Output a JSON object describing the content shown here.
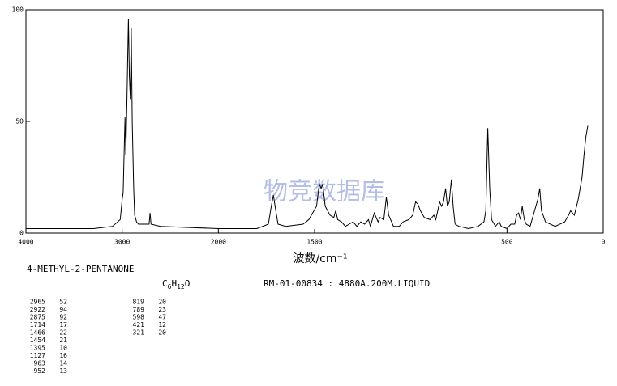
{
  "chart_data": {
    "type": "line",
    "compound": "4-METHYL-2-PENTANONE",
    "formula": "C6H12O",
    "reference": "RM-01-00834 : 4880A.200M.LIQUID",
    "watermark": "物竞数据库",
    "x_label": "波数/cm⁻¹",
    "xlim": [
      4000,
      0
    ],
    "x_scale_break": 2000,
    "x_scale_ratio": 2,
    "xticks": [
      4000,
      3000,
      2000,
      1500,
      500,
      0
    ],
    "ylim": [
      0,
      100
    ],
    "yticks": [
      0,
      50,
      100
    ],
    "color": "#000000",
    "x": [
      4000,
      3300,
      3100,
      3020,
      3000,
      2990,
      2970,
      2962,
      2950,
      2935,
      2925,
      2915,
      2905,
      2895,
      2880,
      2870,
      2850,
      2830,
      2720,
      2710,
      2700,
      2600,
      2000,
      1800,
      1740,
      1725,
      1714,
      1705,
      1690,
      1650,
      1560,
      1530,
      1490,
      1475,
      1466,
      1458,
      1445,
      1420,
      1400,
      1390,
      1380,
      1360,
      1340,
      1320,
      1300,
      1280,
      1260,
      1240,
      1220,
      1210,
      1190,
      1170,
      1160,
      1140,
      1127,
      1115,
      1090,
      1060,
      1040,
      1010,
      990,
      975,
      963,
      950,
      930,
      900,
      880,
      870,
      860,
      850,
      840,
      830,
      819,
      810,
      800,
      789,
      780,
      770,
      750,
      700,
      650,
      620,
      610,
      600,
      590,
      580,
      560,
      540,
      530,
      500,
      480,
      460,
      450,
      440,
      430,
      421,
      410,
      400,
      380,
      370,
      350,
      340,
      330,
      321,
      300,
      250,
      200,
      180,
      170,
      150,
      130,
      110,
      100,
      90,
      80
    ],
    "values": [
      2,
      2,
      3,
      6,
      15,
      18,
      52,
      35,
      60,
      96,
      70,
      60,
      92,
      50,
      20,
      8,
      5,
      4,
      4,
      9,
      4,
      3,
      2,
      2,
      4,
      12,
      17,
      12,
      4,
      3,
      4,
      6,
      12,
      22,
      20,
      22,
      12,
      8,
      7,
      10,
      6,
      5,
      3,
      4,
      5,
      3,
      5,
      4,
      6,
      3,
      9,
      5,
      7,
      6,
      16,
      8,
      3,
      3,
      5,
      6,
      8,
      14,
      13,
      10,
      7,
      6,
      8,
      6,
      10,
      14,
      12,
      14,
      20,
      12,
      14,
      24,
      12,
      4,
      3,
      2,
      3,
      5,
      10,
      47,
      20,
      6,
      3,
      5,
      3,
      2,
      4,
      4,
      8,
      9,
      6,
      12,
      6,
      4,
      3,
      6,
      12,
      15,
      20,
      10,
      5,
      3,
      5,
      8,
      10,
      8,
      15,
      25,
      35,
      43,
      48
    ],
    "peaks": [
      [
        2965,
        52
      ],
      [
        2922,
        94
      ],
      [
        2875,
        92
      ],
      [
        1714,
        17
      ],
      [
        1466,
        22
      ],
      [
        1454,
        21
      ],
      [
        1395,
        10
      ],
      [
        1127,
        16
      ],
      [
        963,
        14
      ],
      [
        952,
        13
      ],
      [
        819,
        20
      ],
      [
        789,
        23
      ],
      [
        598,
        47
      ],
      [
        421,
        12
      ],
      [
        321,
        20
      ]
    ]
  }
}
